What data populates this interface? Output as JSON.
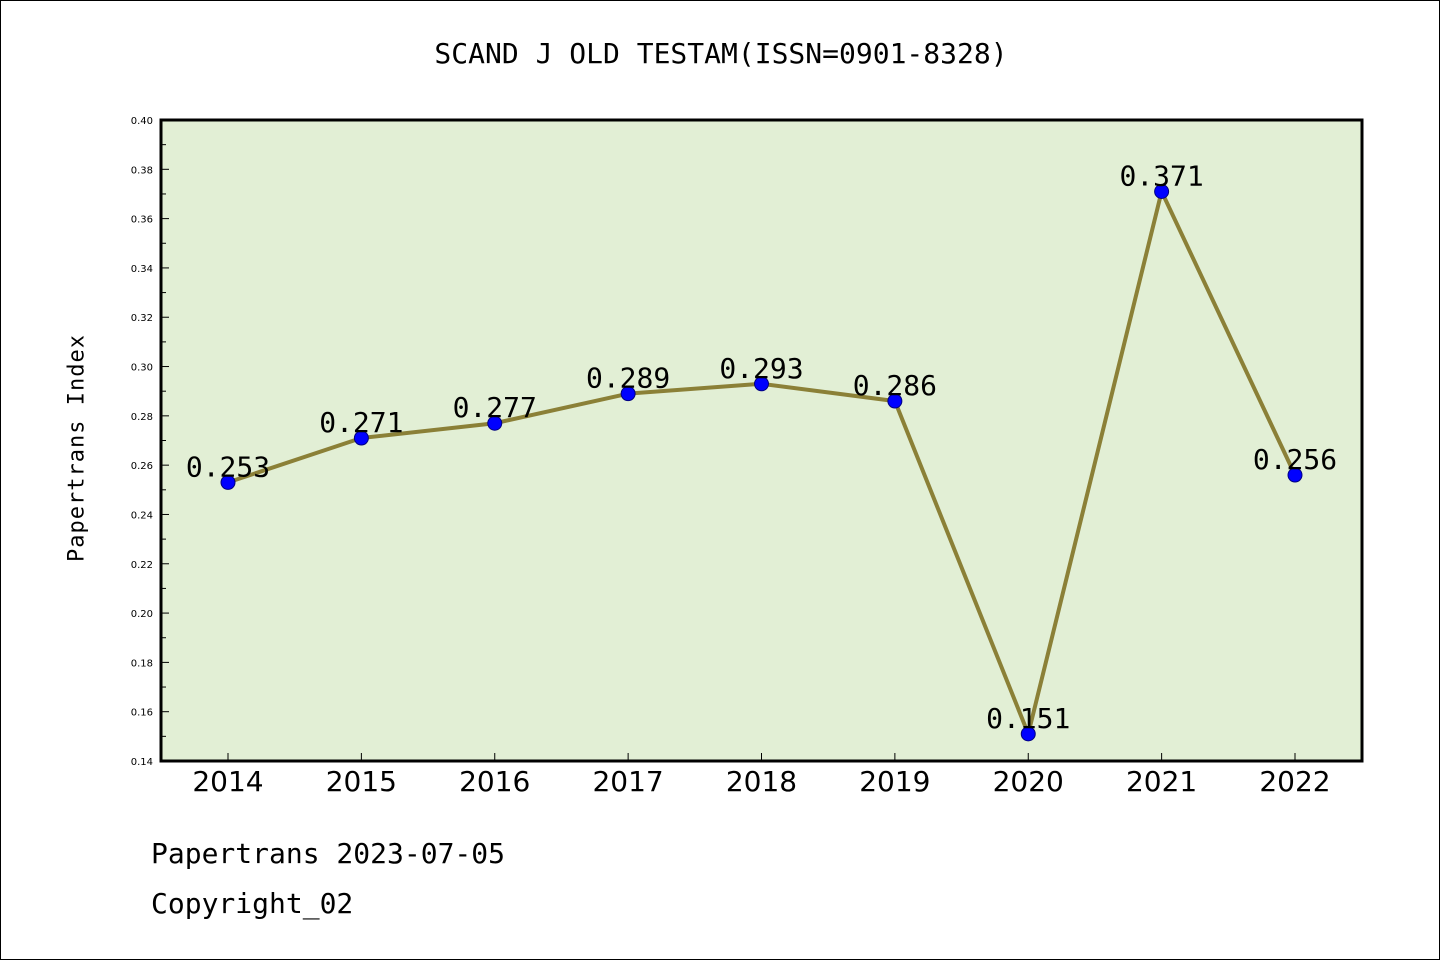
{
  "chart_data": {
    "type": "line",
    "title": "SCAND J OLD TESTAM(ISSN=0901-8328)",
    "xlabel": "",
    "ylabel": "Papertrans Index",
    "categories": [
      "2014",
      "2015",
      "2016",
      "2017",
      "2018",
      "2019",
      "2020",
      "2021",
      "2022"
    ],
    "values": [
      0.253,
      0.271,
      0.277,
      0.289,
      0.293,
      0.286,
      0.151,
      0.371,
      0.256
    ],
    "data_labels": [
      "0.253",
      "0.271",
      "0.277",
      "0.289",
      "0.293",
      "0.286",
      "0.151",
      "0.371",
      "0.256"
    ],
    "ylim": [
      0.14,
      0.4
    ],
    "yticks": [
      "0.14",
      "0.16",
      "0.18",
      "0.20",
      "0.22",
      "0.24",
      "0.26",
      "0.28",
      "0.30",
      "0.32",
      "0.34",
      "0.36",
      "0.38",
      "0.40"
    ],
    "grid": false,
    "legend": "none",
    "colors": {
      "plot_background": "#e2efd5",
      "line": "#8b8037",
      "marker": "#0000ff",
      "marker_edge": "#000080",
      "axes": "#000000"
    }
  },
  "footer": {
    "date_line": "Papertrans 2023-07-05",
    "copyright_line": "Copyright_02"
  }
}
